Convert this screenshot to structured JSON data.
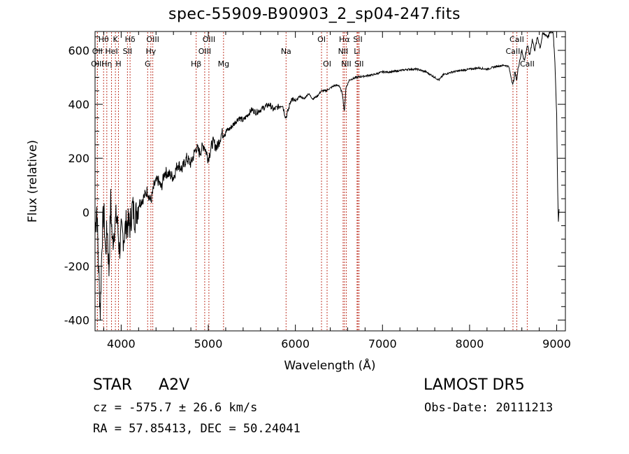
{
  "chart_data": {
    "type": "line",
    "title": "spec-55909-B90903_2_sp04-247.fits",
    "xlabel": "Wavelength (Å)",
    "ylabel": "Flux (relative)",
    "xlim": [
      3700,
      9100
    ],
    "ylim": [
      -440,
      670
    ],
    "xticks": [
      4000,
      5000,
      6000,
      7000,
      8000,
      9000
    ],
    "yticks": [
      -400,
      -200,
      0,
      200,
      400,
      600
    ],
    "series": [
      {
        "x": [
          3700,
          3720,
          3740,
          3760,
          3780,
          3800,
          3820,
          3840,
          3860,
          3880,
          3900,
          3920,
          3950,
          3980,
          4000,
          4030,
          4060,
          4100,
          4130,
          4160,
          4200,
          4250,
          4300,
          4340,
          4380,
          4420,
          4460,
          4500,
          4550,
          4600,
          4650,
          4700,
          4750,
          4800,
          4860,
          4900,
          4950,
          5000,
          5050,
          5100,
          5150,
          5200,
          5250,
          5300,
          5350,
          5400,
          5450,
          5500,
          5550,
          5600,
          5650,
          5700,
          5750,
          5800,
          5850,
          5890,
          5920,
          5950,
          6000,
          6050,
          6100,
          6150,
          6200,
          6250,
          6300,
          6350,
          6400,
          6450,
          6500,
          6540,
          6563,
          6580,
          6620,
          6700,
          6800,
          6900,
          7000,
          7100,
          7200,
          7300,
          7400,
          7500,
          7600,
          7650,
          7700,
          7750,
          7800,
          7900,
          8000,
          8100,
          8200,
          8300,
          8400,
          8450,
          8498,
          8520,
          8542,
          8560,
          8600,
          8630,
          8662,
          8690,
          8720,
          8750,
          8780,
          8810,
          8840,
          8870,
          8900,
          8930,
          8960,
          8980,
          9000,
          9010,
          9020,
          9030
        ],
        "y": [
          -60,
          20,
          -200,
          -370,
          -100,
          10,
          -150,
          -50,
          -220,
          40,
          -120,
          -60,
          -10,
          -140,
          -80,
          -90,
          -40,
          -50,
          20,
          -20,
          30,
          50,
          80,
          40,
          100,
          120,
          90,
          150,
          140,
          130,
          180,
          160,
          200,
          180,
          240,
          220,
          250,
          200,
          260,
          240,
          290,
          300,
          310,
          330,
          350,
          340,
          360,
          380,
          370,
          380,
          390,
          400,
          380,
          390,
          400,
          350,
          380,
          420,
          410,
          430,
          420,
          440,
          420,
          430,
          450,
          450,
          460,
          470,
          470,
          440,
          370,
          460,
          490,
          500,
          505,
          510,
          520,
          520,
          525,
          530,
          530,
          520,
          500,
          490,
          510,
          515,
          520,
          525,
          530,
          535,
          530,
          540,
          545,
          540,
          470,
          520,
          490,
          540,
          600,
          560,
          620,
          580,
          640,
          600,
          650,
          610,
          660,
          660,
          650,
          670,
          665,
          560,
          360,
          100,
          -30,
          20
        ]
      }
    ],
    "lines": [
      {
        "name": "Hθ",
        "x": 3798,
        "row": 1
      },
      {
        "name": "OII",
        "x": 3727,
        "row": 2
      },
      {
        "name": "OIII",
        "x": 3727,
        "row": 3
      },
      {
        "name": "Hη",
        "x": 3835,
        "row": 3
      },
      {
        "name": "HeI",
        "x": 3889,
        "row": 2
      },
      {
        "name": "K",
        "x": 3934,
        "row": 1
      },
      {
        "name": "H",
        "x": 3969,
        "row": 3
      },
      {
        "name": "SII",
        "x": 4072,
        "row": 2
      },
      {
        "name": "Hδ",
        "x": 4102,
        "row": 1
      },
      {
        "name": "G",
        "x": 4304,
        "row": 3
      },
      {
        "name": "OIII",
        "x": 4363,
        "row": 1
      },
      {
        "name": "Hγ",
        "x": 4341,
        "row": 2
      },
      {
        "name": "Hβ",
        "x": 4861,
        "row": 3
      },
      {
        "name": "OIII",
        "x": 4959,
        "row": 2
      },
      {
        "name": "OIII",
        "x": 5007,
        "row": 1
      },
      {
        "name": "Mg",
        "x": 5175,
        "row": 3
      },
      {
        "name": "Na",
        "x": 5893,
        "row": 2
      },
      {
        "name": "OI",
        "x": 6300,
        "row": 1
      },
      {
        "name": "OI",
        "x": 6364,
        "row": 3
      },
      {
        "name": "Hα",
        "x": 6563,
        "row": 1
      },
      {
        "name": "NII",
        "x": 6548,
        "row": 2
      },
      {
        "name": "NII",
        "x": 6584,
        "row": 3
      },
      {
        "name": "SII",
        "x": 6717,
        "row": 1
      },
      {
        "name": "Li",
        "x": 6708,
        "row": 2
      },
      {
        "name": "SII",
        "x": 6731,
        "row": 3
      },
      {
        "name": "CaII",
        "x": 8542,
        "row": 1
      },
      {
        "name": "CaII",
        "x": 8498,
        "row": 2
      },
      {
        "name": "CaII",
        "x": 8662,
        "row": 3
      }
    ]
  },
  "footer": {
    "object_type": "STAR",
    "subclass": "A2V",
    "survey": "LAMOST DR5",
    "cz": "cz = -575.7 ± 26.6 km/s",
    "obs_date": "Obs-Date: 20111213",
    "radec": "RA =  57.85413, DEC =  50.24041"
  }
}
